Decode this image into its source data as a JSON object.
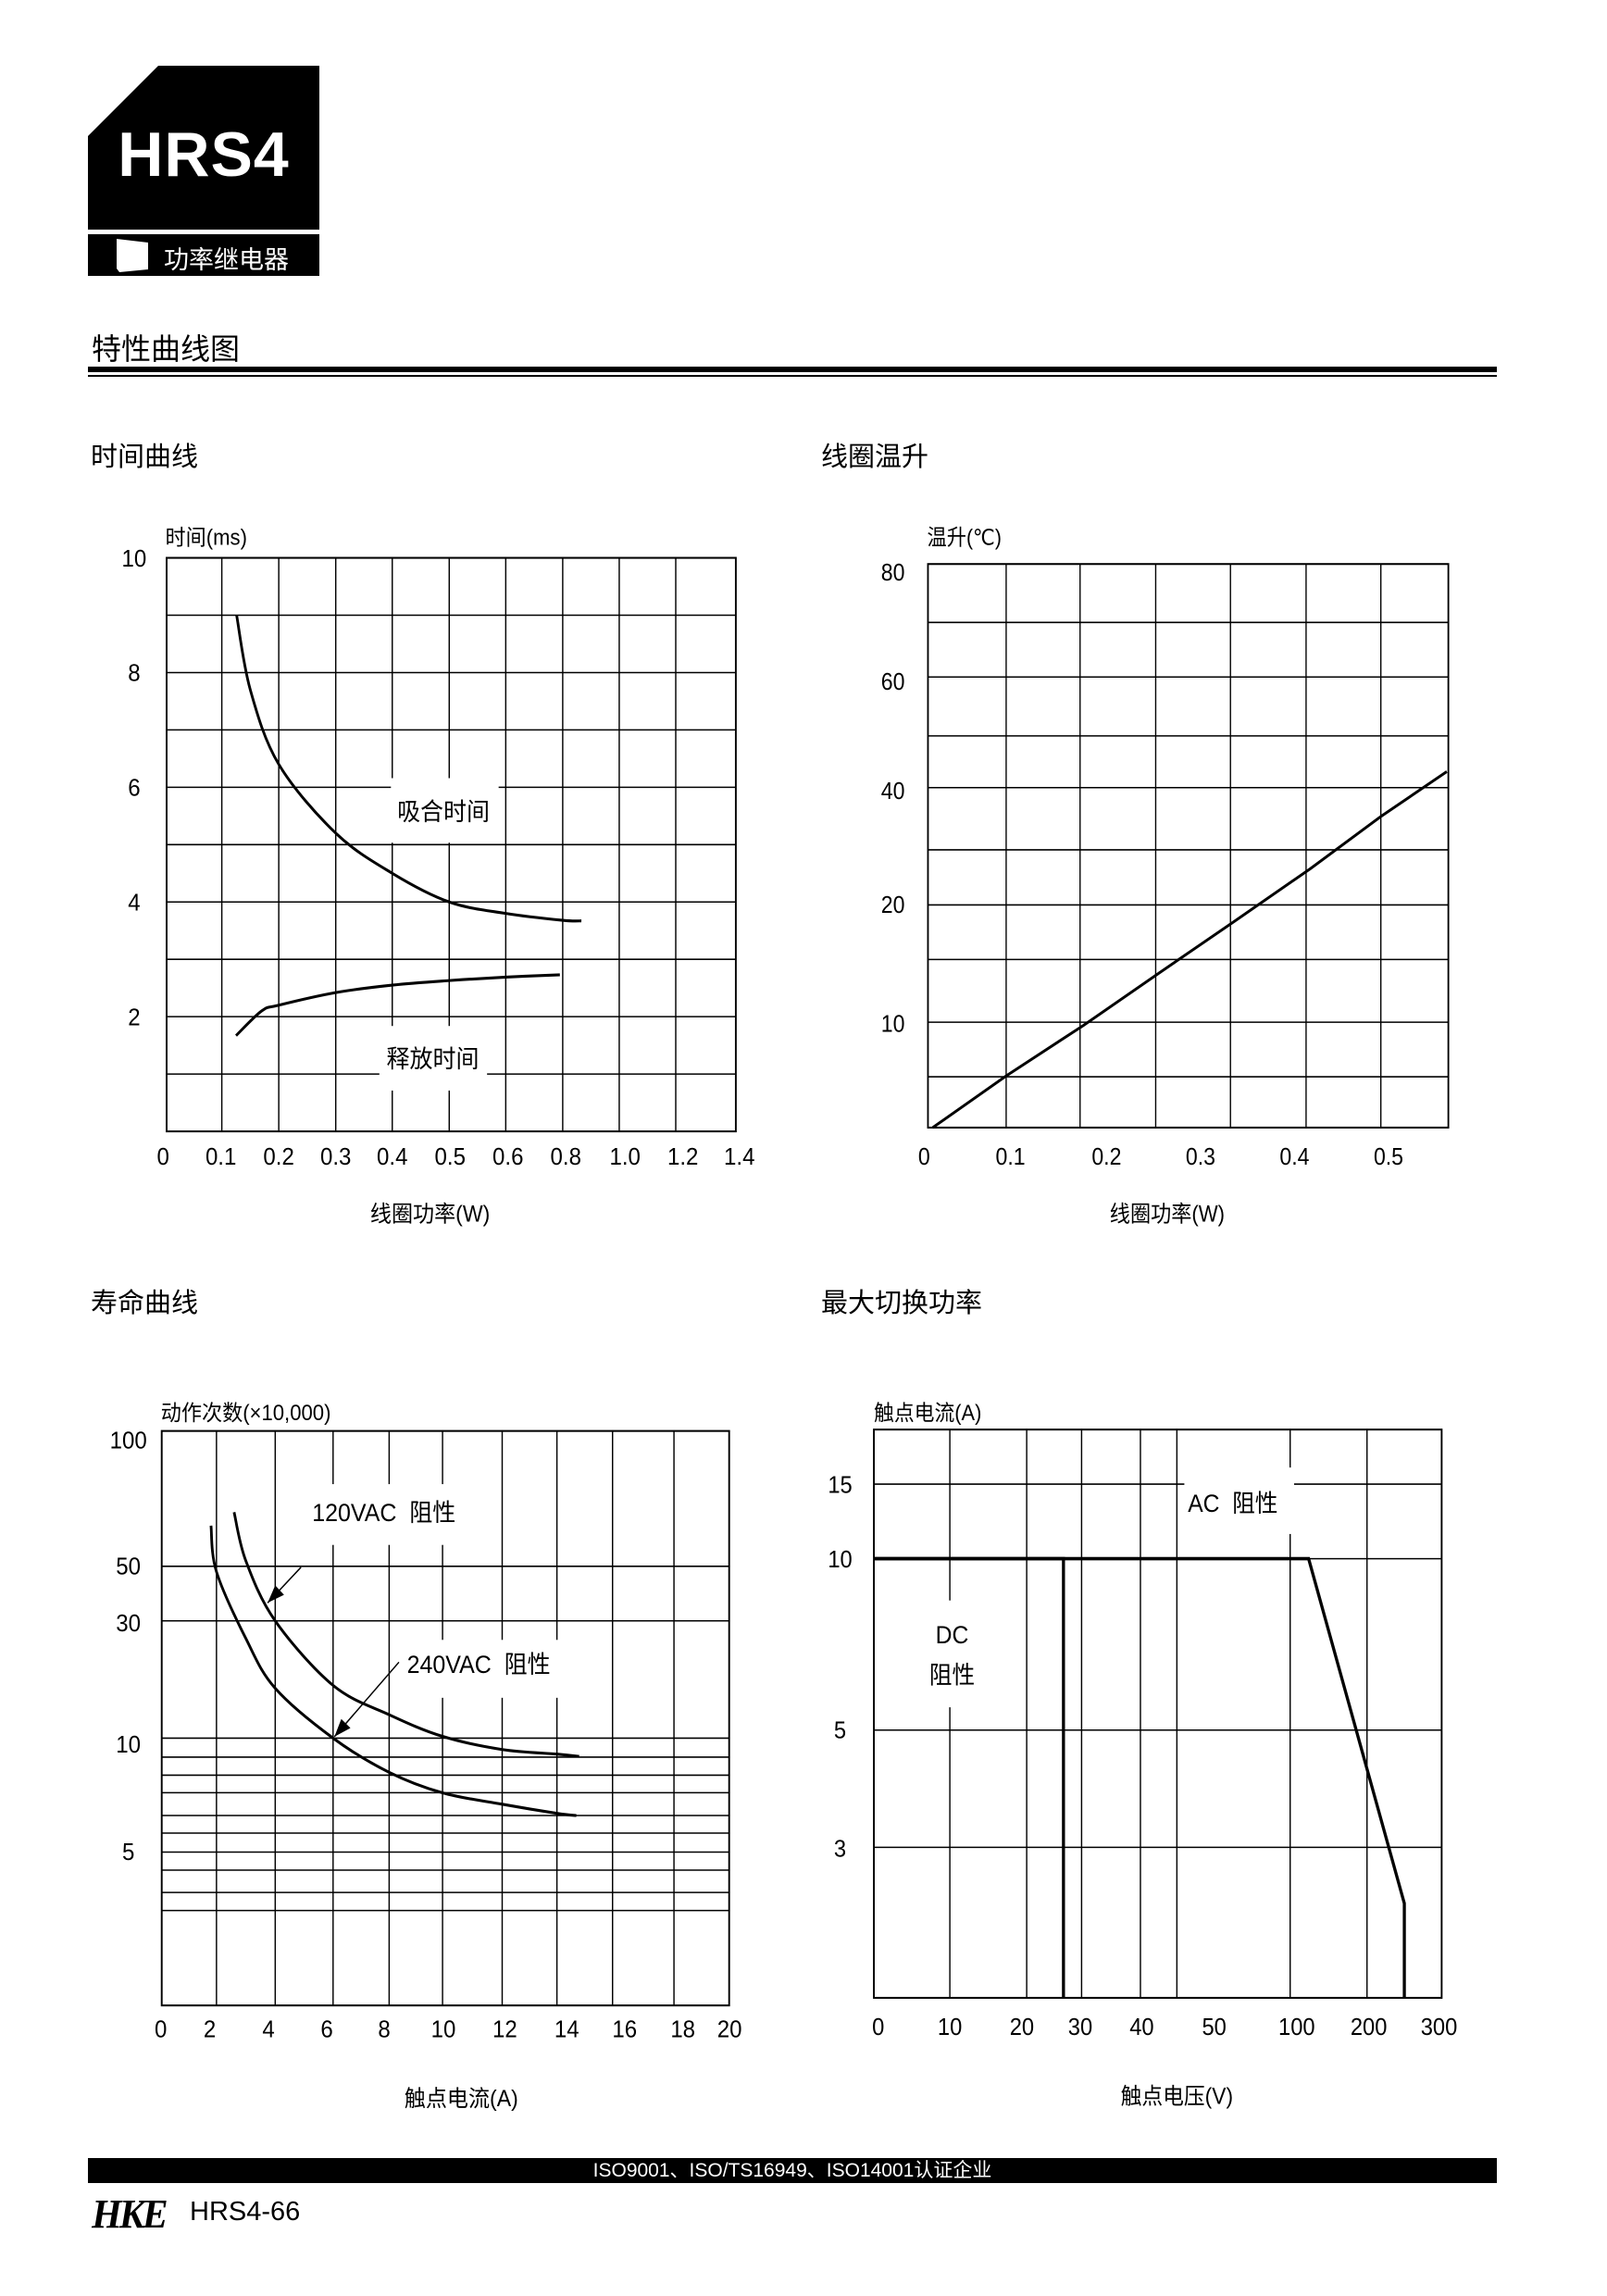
{
  "header": {
    "logo_text": "HRS4",
    "subtitle": "功率继电器",
    "page_title": "特性曲线图"
  },
  "sections": {
    "time_curve": "时间曲线",
    "coil_temp_rise": "线圈温升",
    "life_curve": "寿命曲线",
    "max_switching_power": "最大切换功率"
  },
  "footer": {
    "certification": "ISO9001、ISO/TS16949、ISO14001认证企业",
    "brand_logo": "HKE",
    "page_number": "HRS4-66"
  },
  "chart_data": [
    {
      "type": "line",
      "title": "时间曲线",
      "ylabel": "时间(ms)",
      "xlabel": "线圈功率(W)",
      "x_ticks": [
        "0",
        "0.1",
        "0.2",
        "0.3",
        "0.4",
        "0.5",
        "0.6",
        "0.8",
        "1.0",
        "1.2",
        "1.4"
      ],
      "x_tick_values": [
        0,
        0.1,
        0.2,
        0.3,
        0.4,
        0.5,
        0.6,
        0.8,
        1.0,
        1.2,
        1.4
      ],
      "y_ticks": [
        "10",
        "8",
        "6",
        "4",
        "2"
      ],
      "y_tick_values": [
        10,
        8,
        6,
        4,
        2
      ],
      "ylim": [
        0,
        10
      ],
      "grid": true,
      "series": [
        {
          "name": "吸合时间",
          "points": [
            [
              0.126,
              9
            ],
            [
              0.15,
              7.7
            ],
            [
              0.2,
              6.4
            ],
            [
              0.3,
              5.2
            ],
            [
              0.4,
              4.5
            ],
            [
              0.5,
              4.0
            ],
            [
              0.6,
              3.8
            ],
            [
              0.8,
              3.68
            ],
            [
              0.866,
              3.67
            ]
          ]
        },
        {
          "name": "释放时间",
          "points": [
            [
              0.125,
              1.67
            ],
            [
              0.17,
              2.1
            ],
            [
              0.2,
              2.2
            ],
            [
              0.3,
              2.42
            ],
            [
              0.4,
              2.55
            ],
            [
              0.5,
              2.63
            ],
            [
              0.6,
              2.69
            ],
            [
              0.79,
              2.73
            ]
          ]
        }
      ]
    },
    {
      "type": "line",
      "title": "线圈温升",
      "ylabel": "温升(℃)",
      "xlabel": "线圈功率(W)",
      "x_ticks": [
        "0",
        "0.1",
        "0.2",
        "0.3",
        "0.4",
        "0.5"
      ],
      "x_tick_values": [
        0,
        0.1,
        0.2,
        0.3,
        0.4,
        0.5
      ],
      "y_ticks": [
        "80",
        "60",
        "40",
        "20",
        "10"
      ],
      "y_tick_values": [
        80,
        60,
        40,
        20,
        10
      ],
      "ylim": [
        0,
        80
      ],
      "grid": true,
      "series": [
        {
          "points": [
            [
              0.01,
              0
            ],
            [
              0.095,
              4.9
            ],
            [
              0.176,
              9.7
            ],
            [
              0.256,
              14.2
            ],
            [
              0.336,
              18.6
            ],
            [
              0.417,
              26.2
            ],
            [
              0.492,
              35.1
            ],
            [
              0.562,
              42.9
            ]
          ]
        }
      ]
    },
    {
      "type": "line",
      "title": "寿命曲线",
      "ylabel": "动作次数(×10,000)",
      "xlabel": "触点电流(A)",
      "x_ticks": [
        "0",
        "2",
        "4",
        "6",
        "8",
        "10",
        "12",
        "14",
        "16",
        "18",
        "20"
      ],
      "x_tick_values": [
        0,
        2,
        4,
        6,
        8,
        10,
        12,
        14,
        16,
        18,
        20
      ],
      "y_ticks": [
        "100",
        "50",
        "30",
        "10",
        "5"
      ],
      "y_tick_values": [
        100,
        50,
        30,
        10,
        5
      ],
      "grid": true,
      "series": [
        {
          "name": "120VAC  阻性",
          "points": [
            [
              2.6,
              70
            ],
            [
              3,
              52
            ],
            [
              4,
              30
            ],
            [
              6,
              19
            ],
            [
              8,
              14
            ],
            [
              10,
              10.3
            ],
            [
              12,
              9.5
            ],
            [
              14,
              9.3
            ],
            [
              14.8,
              9.2
            ]
          ]
        },
        {
          "name": "240VAC  阻性",
          "points": [
            [
              1.8,
              65
            ],
            [
              2,
              48
            ],
            [
              3,
              27
            ],
            [
              4,
              18.5
            ],
            [
              6,
              10
            ],
            [
              8,
              8.5
            ],
            [
              10,
              7.6
            ],
            [
              12,
              7.1
            ],
            [
              14,
              6.7
            ],
            [
              14.7,
              6.6
            ]
          ]
        }
      ]
    },
    {
      "type": "line",
      "title": "最大切换功率",
      "ylabel": "触点电流(A)",
      "xlabel": "触点电压(V)",
      "x_ticks": [
        "0",
        "10",
        "20",
        "30",
        "40",
        "50",
        "100",
        "200",
        "300"
      ],
      "x_tick_values": [
        0,
        10,
        20,
        30,
        40,
        50,
        100,
        200,
        300
      ],
      "y_ticks": [
        "15",
        "10",
        "5",
        "3"
      ],
      "y_tick_values": [
        15,
        10,
        5,
        3
      ],
      "grid": true,
      "series": [
        {
          "name": "DC 阻性",
          "label_lines": [
            "DC",
            "阻性"
          ],
          "points": [
            [
              0,
              10
            ],
            [
              26.7,
              10
            ],
            [
              26.7,
              1.56
            ]
          ]
        },
        {
          "name": "AC  阻性",
          "points": [
            [
              0,
              10
            ],
            [
              124,
              10
            ],
            [
              250,
              2.35
            ],
            [
              250,
              1.56
            ]
          ]
        }
      ]
    }
  ]
}
